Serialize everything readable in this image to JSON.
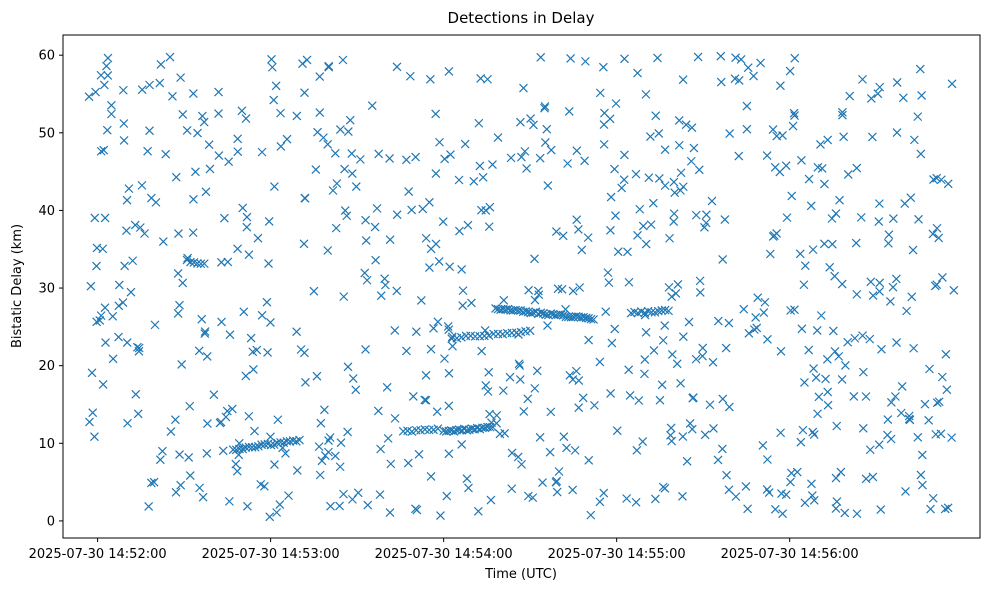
{
  "chart_data": {
    "type": "scatter",
    "title": "Detections in Delay",
    "xlabel": "Time (UTC)",
    "ylabel": "Bistatic Delay (km)",
    "marker": "x",
    "marker_color": "#1f77b4",
    "grid": false,
    "x_range": [
      "2025-07-30 14:51:48",
      "2025-07-30 14:57:06"
    ],
    "ylim": [
      -2.2,
      62.6
    ],
    "x_ticks": [
      "2025-07-30 14:52:00",
      "2025-07-30 14:53:00",
      "2025-07-30 14:54:00",
      "2025-07-30 14:55:00",
      "2025-07-30 14:56:00"
    ],
    "y_ticks": [
      0,
      10,
      20,
      30,
      40,
      50,
      60
    ],
    "tracks": [
      {
        "start": "2025-07-30 14:52:47",
        "end": "2025-07-30 14:53:10",
        "delay_start": 9.2,
        "delay_end": 10.4,
        "n": 22
      },
      {
        "start": "2025-07-30 14:54:00",
        "end": "2025-07-30 14:54:17",
        "delay_start": 11.5,
        "delay_end": 12.1,
        "n": 20
      },
      {
        "start": "2025-07-30 14:54:03",
        "end": "2025-07-30 14:54:30",
        "delay_start": 23.6,
        "delay_end": 24.4,
        "n": 18
      },
      {
        "start": "2025-07-30 14:54:18",
        "end": "2025-07-30 14:54:52",
        "delay_start": 27.4,
        "delay_end": 26.0,
        "n": 40
      },
      {
        "start": "2025-07-30 14:55:05",
        "end": "2025-07-30 14:55:18",
        "delay_start": 26.8,
        "delay_end": 27.1,
        "n": 12
      },
      {
        "start": "2025-07-30 14:53:46",
        "end": "2025-07-30 14:53:58",
        "delay_start": 11.5,
        "delay_end": 11.9,
        "n": 9
      },
      {
        "start": "2025-07-30 14:52:31",
        "end": "2025-07-30 14:52:37",
        "delay_start": 33.5,
        "delay_end": 33.1,
        "n": 6
      }
    ],
    "random_points": {
      "count": 760,
      "x_start": "2025-07-30 14:51:57",
      "x_end": "2025-07-30 14:56:57",
      "delay_min": 0.5,
      "delay_max": 59.9
    }
  }
}
